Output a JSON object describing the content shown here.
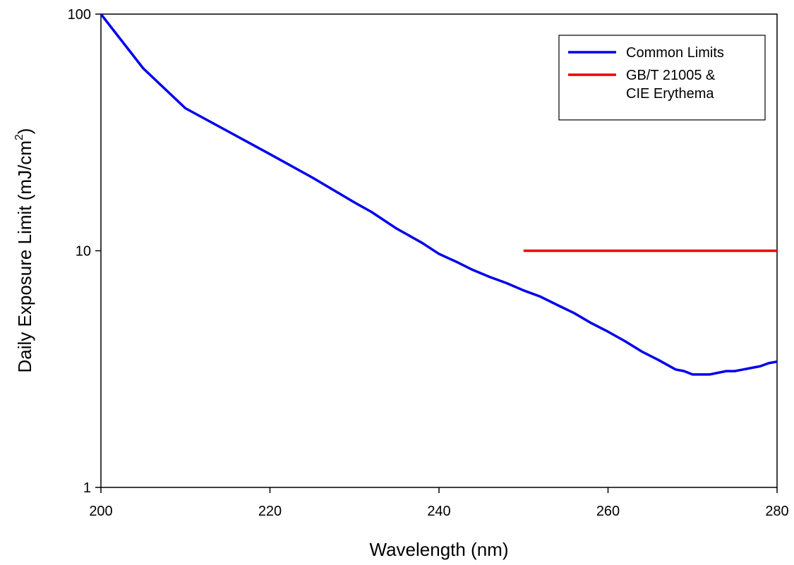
{
  "chart_data": {
    "type": "line",
    "title": "",
    "xlabel": "Wavelength (nm)",
    "ylabel": "Daily Exposure Limit (mJ/cm",
    "ylabel_superscript": "2",
    "ylabel_suffix": ")",
    "xlim": [
      200,
      280
    ],
    "ylim": [
      1,
      100
    ],
    "yscale": "log",
    "grid": false,
    "legend_position": "top-right",
    "x_ticks": [
      "200",
      "220",
      "240",
      "260",
      "280"
    ],
    "y_ticks": [
      "1",
      "10",
      "100"
    ],
    "series": [
      {
        "name": "Common Limits",
        "color": "#0000ee",
        "x": [
          200,
          205,
          210,
          215,
          220,
          225,
          230,
          232,
          235,
          238,
          240,
          242,
          244,
          246,
          248,
          250,
          252,
          254,
          256,
          258,
          260,
          262,
          264,
          266,
          268,
          269,
          270,
          271,
          272,
          273,
          274,
          275,
          276,
          277,
          278,
          279,
          280
        ],
        "y": [
          100,
          59,
          40,
          32,
          25.6,
          20.4,
          16,
          14.6,
          12.4,
          10.8,
          9.7,
          9,
          8.3,
          7.75,
          7.3,
          6.8,
          6.4,
          5.9,
          5.45,
          4.95,
          4.55,
          4.15,
          3.75,
          3.45,
          3.15,
          3.1,
          3.0,
          3.0,
          3.0,
          3.05,
          3.1,
          3.1,
          3.15,
          3.2,
          3.25,
          3.35,
          3.4
        ]
      },
      {
        "name": "GB/T 21005 &\nCIE Erythema",
        "name_lines": [
          "GB/T 21005 &",
          "CIE Erythema"
        ],
        "color": "#ee0000",
        "x": [
          250,
          280
        ],
        "y": [
          10,
          10
        ]
      }
    ]
  }
}
